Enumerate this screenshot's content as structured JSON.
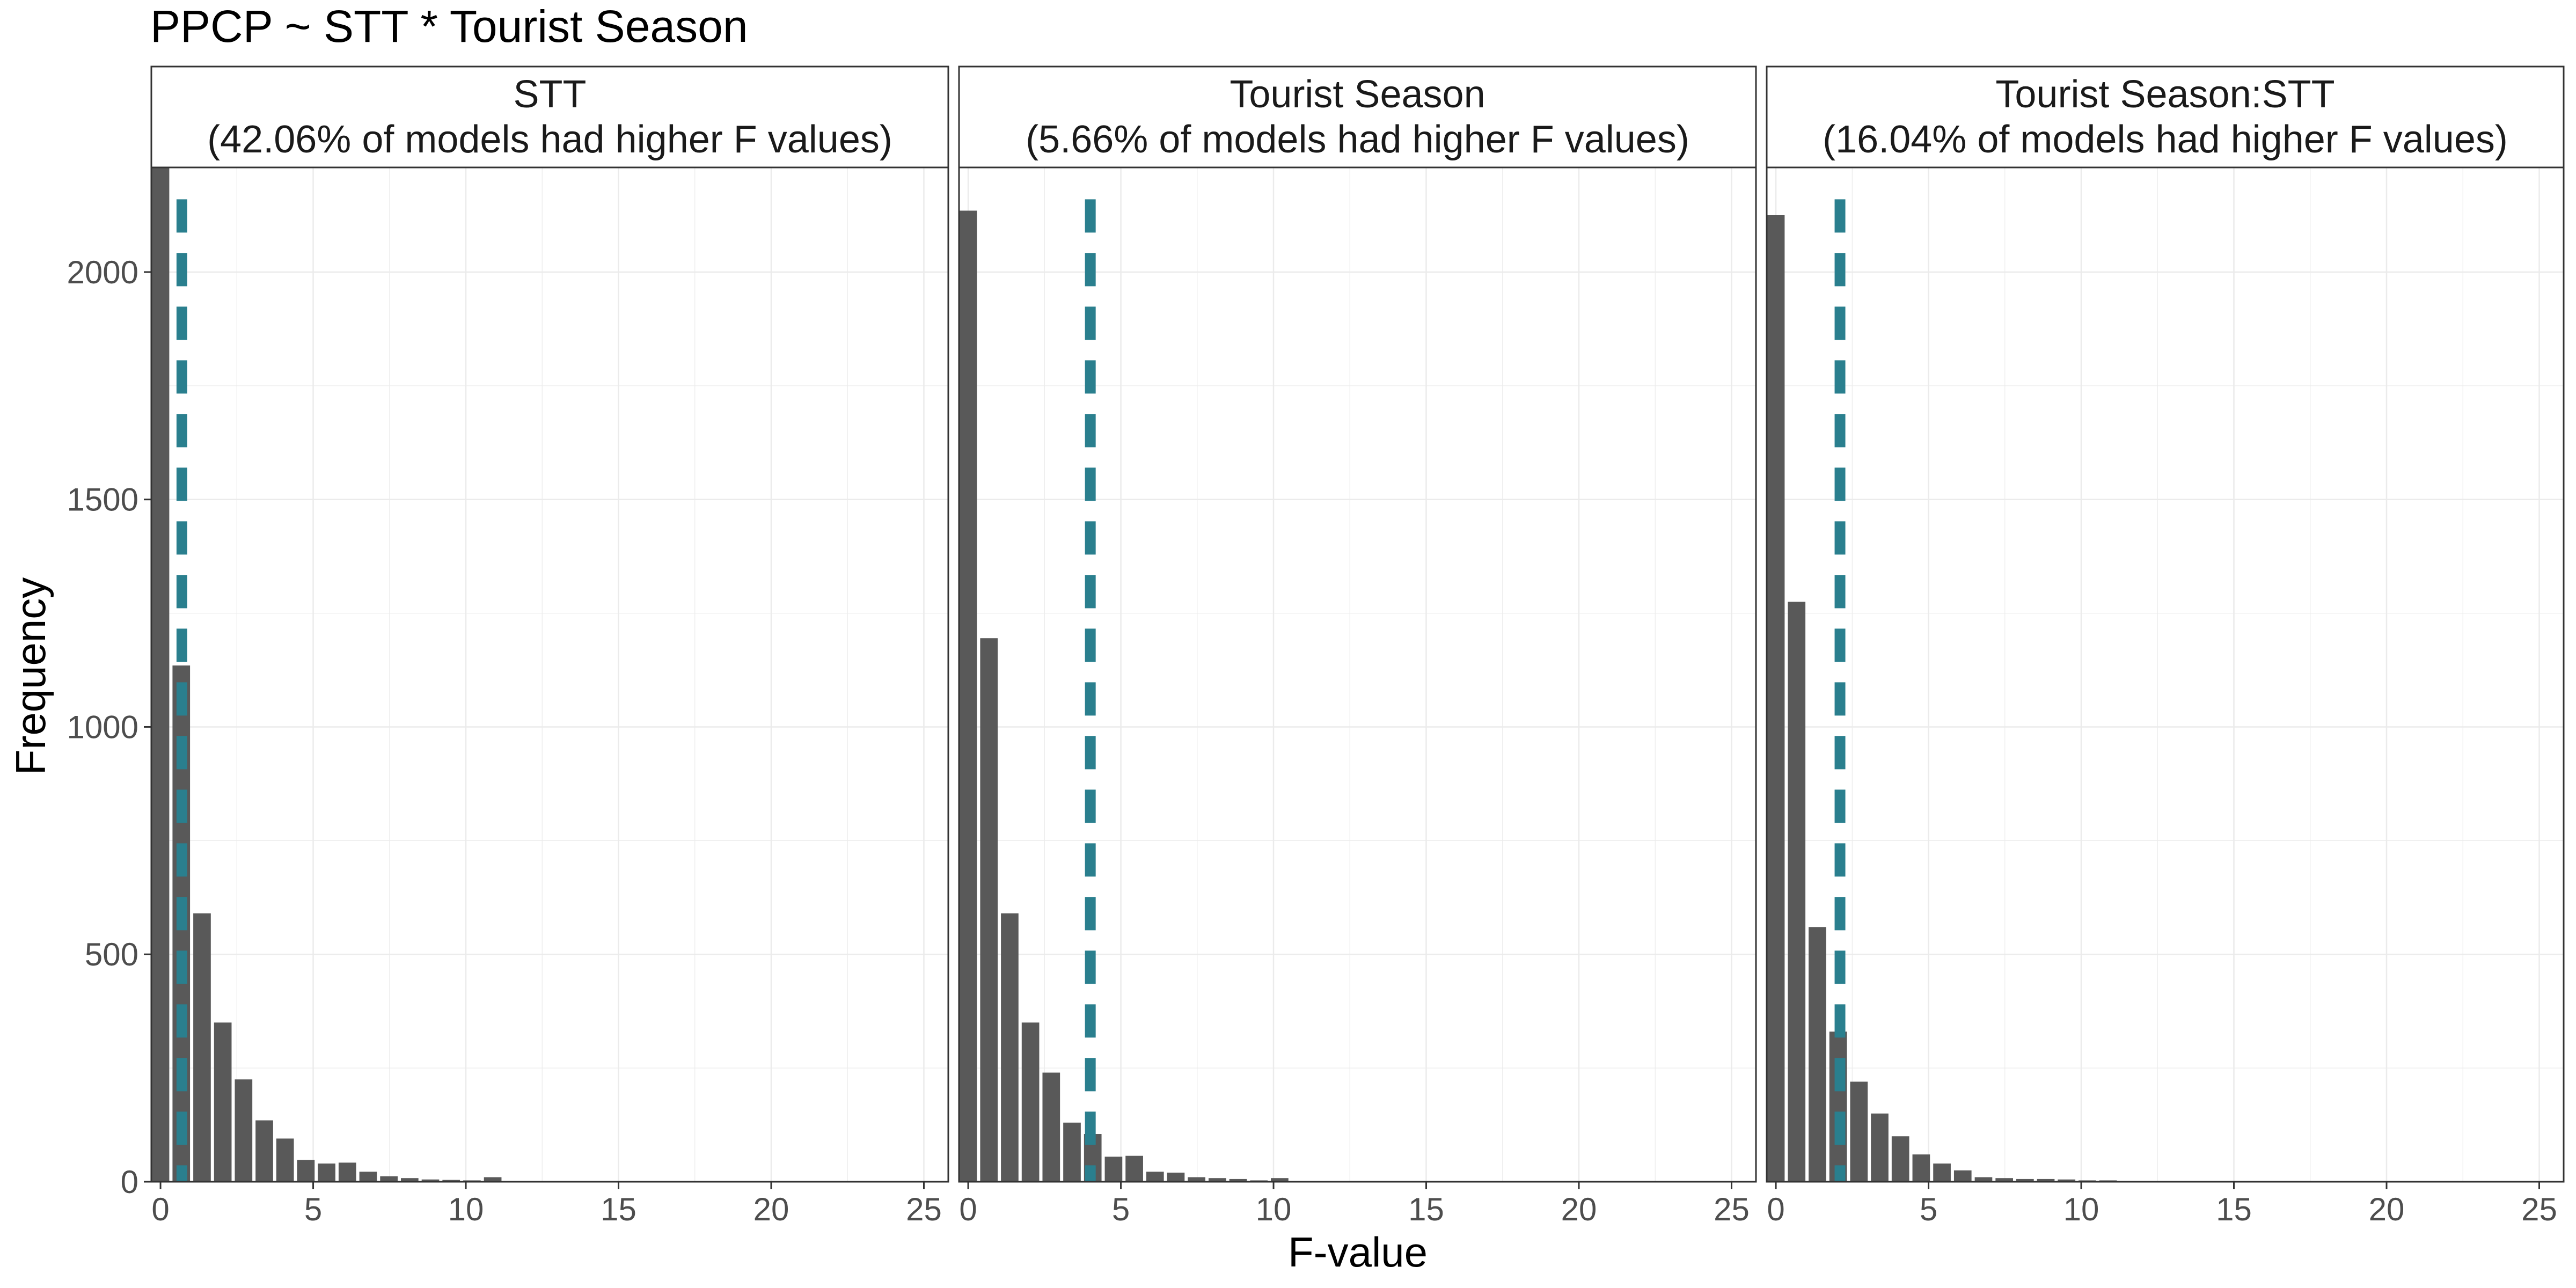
{
  "chart_data": {
    "type": "bar",
    "title": "PPCP ~ STT * Tourist Season",
    "xlabel": "F-value",
    "ylabel": "Frequency",
    "xlim": [
      -0.3,
      25.8
    ],
    "ylim": [
      0,
      2230
    ],
    "x_ticks": [
      0,
      5,
      10,
      15,
      20,
      25
    ],
    "y_ticks": [
      0,
      500,
      1000,
      1500,
      2000
    ],
    "grid": true,
    "bin_width": 0.68,
    "bar_color": "#595959",
    "line_color": "#2a7f8e",
    "panels": [
      {
        "strip_line1": "STT",
        "strip_line2": "(42.06% of models had higher F values)",
        "observed_f": 0.7,
        "bin_centers": [
          0,
          0.68,
          1.36,
          2.04,
          2.72,
          3.4,
          4.08,
          4.76,
          5.44,
          6.12,
          6.8,
          7.48,
          8.16,
          8.84,
          9.52,
          10.2,
          10.88
        ],
        "counts": [
          2240,
          1135,
          590,
          350,
          225,
          135,
          95,
          48,
          40,
          42,
          22,
          12,
          8,
          5,
          4,
          3,
          10
        ]
      },
      {
        "strip_line1": "Tourist Season",
        "strip_line2": "(5.66% of models had higher F values)",
        "observed_f": 4.0,
        "bin_centers": [
          0,
          0.68,
          1.36,
          2.04,
          2.72,
          3.4,
          4.08,
          4.76,
          5.44,
          6.12,
          6.8,
          7.48,
          8.16,
          8.84,
          9.52,
          10.2
        ],
        "counts": [
          2135,
          1195,
          590,
          350,
          240,
          130,
          105,
          55,
          57,
          22,
          20,
          10,
          8,
          6,
          3,
          8
        ]
      },
      {
        "strip_line1": "Tourist Season:STT",
        "strip_line2": "(16.04% of models had higher F values)",
        "observed_f": 2.1,
        "bin_centers": [
          0,
          0.68,
          1.36,
          2.04,
          2.72,
          3.4,
          4.08,
          4.76,
          5.44,
          6.12,
          6.8,
          7.48,
          8.16,
          8.84,
          9.52,
          10.2,
          10.88
        ],
        "counts": [
          2125,
          1275,
          560,
          330,
          220,
          150,
          100,
          60,
          40,
          25,
          10,
          8,
          6,
          6,
          5,
          3,
          3
        ]
      }
    ]
  }
}
